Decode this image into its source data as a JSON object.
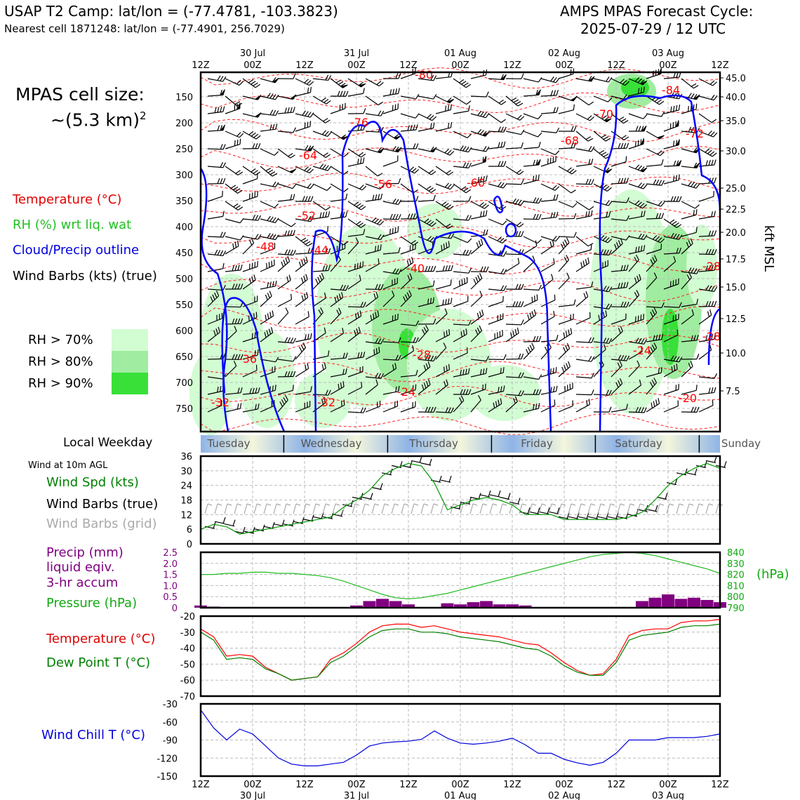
{
  "header": {
    "left_title": "USAP T2 Camp: lat/lon = (-77.4781, -103.3823)",
    "left_subtitle": "Nearest cell 1871248: lat/lon = (-77.4901, 256.7029)",
    "right_title_1": "AMPS MPAS Forecast Cycle:",
    "right_title_2": "2025-07-29 / 12 UTC"
  },
  "cell_size": {
    "line1": "MPAS cell size:",
    "line2": "~(5.3 km)",
    "sup": "2"
  },
  "main_legend": {
    "temperature": "Temperature (°C)",
    "rh": "RH (%) wrt liq. wat",
    "cloud": "Cloud/Precip outline",
    "barbs": "Wind Barbs (kts) (true)"
  },
  "rh_legend": [
    {
      "label": "RH > 70%",
      "color": "#d2fcd2"
    },
    {
      "label": "RH > 80%",
      "color": "#a0eca0"
    },
    {
      "label": "RH > 90%",
      "color": "#38e038"
    }
  ],
  "time_axis": {
    "top_labels": [
      {
        "h": "12Z",
        "d": ""
      },
      {
        "h": "00Z",
        "d": "30 Jul"
      },
      {
        "h": "12Z",
        "d": ""
      },
      {
        "h": "00Z",
        "d": "31 Jul"
      },
      {
        "h": "12Z",
        "d": ""
      },
      {
        "h": "00Z",
        "d": "01 Aug"
      },
      {
        "h": "12Z",
        "d": ""
      },
      {
        "h": "00Z",
        "d": "02 Aug"
      },
      {
        "h": "12Z",
        "d": ""
      },
      {
        "h": "00Z",
        "d": "03 Aug"
      },
      {
        "h": "12Z",
        "d": ""
      }
    ]
  },
  "pressure_levels": [
    "150",
    "200",
    "250",
    "300",
    "350",
    "400",
    "450",
    "500",
    "550",
    "600",
    "650",
    "700",
    "750"
  ],
  "kft_levels": [
    "45.0",
    "40.0",
    "35.0",
    "30.0",
    "25.0",
    "22.5",
    "20.0",
    "17.5",
    "15.0",
    "12.5",
    "10.0",
    "7.5"
  ],
  "kft_label": "kft MSL",
  "temp_labels": [
    "-80",
    "-84",
    "-76",
    "-70",
    "-72",
    "-68",
    "-64",
    "-60",
    "-56",
    "-52",
    "-48",
    "-44",
    "-40",
    "-36",
    "-32",
    "-32",
    "-28",
    "-28",
    "-24",
    "-24",
    "-20",
    "-28"
  ],
  "weekday": {
    "label": "Local Weekday",
    "days": [
      "Tuesday",
      "Wednesday",
      "Thursday",
      "Friday",
      "Saturday",
      "Sunday"
    ]
  },
  "panel_wind": {
    "title": "Wind at 10m AGL",
    "spd_label": "Wind Spd (kts)",
    "barbs_true": "Wind Barbs (true)",
    "barbs_grid": "Wind Barbs (grid)",
    "yticks": [
      "36",
      "30",
      "24",
      "18",
      "12",
      "6",
      "0"
    ]
  },
  "panel_precip": {
    "label1": "Precip (mm)",
    "label2": "liquid eqiv.",
    "label3": "3-hr accum",
    "pressure_label": "Pressure (hPa)",
    "unit_right": "(hPa)",
    "yticks_left": [
      "2.5",
      "2.0",
      "1.5",
      "1.0",
      "0.5",
      "0"
    ],
    "yticks_right": [
      "840",
      "830",
      "820",
      "810",
      "800",
      "790"
    ]
  },
  "panel_temp": {
    "temp_label": "Temperature (°C)",
    "dew_label": "Dew Point T (°C)",
    "yticks": [
      "-20",
      "-30",
      "-40",
      "-50",
      "-60",
      "-70"
    ]
  },
  "panel_chill": {
    "label": "Wind Chill T (°C)",
    "yticks": [
      "-30",
      "-60",
      "-90",
      "-120",
      "-150"
    ]
  },
  "colors": {
    "temp": "#ff0000",
    "dew": "#008000",
    "spd": "#009900",
    "pressure": "#22bb22",
    "precip": "#800080",
    "chill": "#0000dd",
    "cloud": "#0000ff"
  },
  "chart_data": {
    "type": "line",
    "x_hours": [
      0,
      3,
      6,
      9,
      12,
      15,
      18,
      21,
      24,
      27,
      30,
      33,
      36,
      39,
      42,
      45,
      48,
      51,
      54,
      57,
      60,
      63,
      66,
      69,
      72,
      75,
      78,
      81,
      84,
      87,
      90,
      93,
      96,
      99,
      102,
      105,
      108,
      111,
      114,
      117,
      120
    ],
    "wind_speed_kts": [
      6,
      8,
      7,
      4,
      5,
      6,
      7,
      8,
      9,
      10,
      11,
      15,
      18,
      22,
      28,
      31,
      33,
      32,
      25,
      14,
      16,
      18,
      19,
      18,
      16,
      12,
      12,
      12,
      10,
      10,
      10,
      10,
      10,
      11,
      13,
      18,
      24,
      28,
      31,
      33,
      31
    ],
    "pressure_hpa": [
      820,
      820,
      821,
      821,
      822,
      822,
      821,
      821,
      820,
      819,
      817,
      814,
      810,
      806,
      802,
      799,
      798,
      799,
      801,
      803,
      806,
      809,
      812,
      815,
      818,
      821,
      824,
      827,
      830,
      833,
      836,
      838,
      839,
      840,
      839,
      837,
      834,
      831,
      828,
      825,
      821
    ],
    "precip_mm": [
      0.1,
      0.05,
      0,
      0,
      0,
      0,
      0,
      0,
      0,
      0,
      0,
      0,
      0.1,
      0.3,
      0.4,
      0.3,
      0.15,
      0,
      0,
      0.2,
      0.15,
      0.25,
      0.3,
      0.15,
      0.15,
      0.1,
      0,
      0,
      0,
      0,
      0,
      0,
      0,
      0,
      0.3,
      0.45,
      0.6,
      0.4,
      0.45,
      0.35,
      0.25
    ],
    "temperature_c": [
      -28,
      -33,
      -45,
      -44,
      -45,
      -52,
      -56,
      -60,
      -59,
      -58,
      -47,
      -43,
      -37,
      -30,
      -26,
      -25,
      -25,
      -27,
      -26,
      -28,
      -30,
      -31,
      -32,
      -33,
      -35,
      -37,
      -38,
      -43,
      -49,
      -54,
      -57,
      -56,
      -47,
      -32,
      -29,
      -28,
      -28,
      -24,
      -23,
      -23,
      -22
    ],
    "dewpoint_c": [
      -30,
      -35,
      -47,
      -46,
      -47,
      -53,
      -56,
      -60,
      -59,
      -58,
      -49,
      -45,
      -39,
      -33,
      -29,
      -28,
      -28,
      -30,
      -30,
      -31,
      -33,
      -34,
      -35,
      -36,
      -38,
      -40,
      -41,
      -45,
      -51,
      -55,
      -57,
      -57,
      -49,
      -35,
      -32,
      -31,
      -30,
      -27,
      -26,
      -26,
      -25
    ],
    "wind_chill_c": [
      -40,
      -70,
      -90,
      -72,
      -80,
      -100,
      -120,
      -130,
      -133,
      -133,
      -130,
      -127,
      -115,
      -100,
      -95,
      -93,
      -92,
      -89,
      -75,
      -87,
      -95,
      -97,
      -95,
      -92,
      -87,
      -98,
      -112,
      -112,
      -122,
      -128,
      -132,
      -127,
      -112,
      -90,
      -90,
      -90,
      -86,
      -86,
      -86,
      -84,
      -80
    ],
    "xlim_hours": [
      0,
      120
    ],
    "ylim_wind": [
      0,
      36
    ],
    "ylim_precip": [
      0,
      2.5
    ],
    "ylim_pressure": [
      790,
      840
    ],
    "ylim_temp": [
      -70,
      -20
    ],
    "ylim_chill": [
      -150,
      -30
    ]
  }
}
